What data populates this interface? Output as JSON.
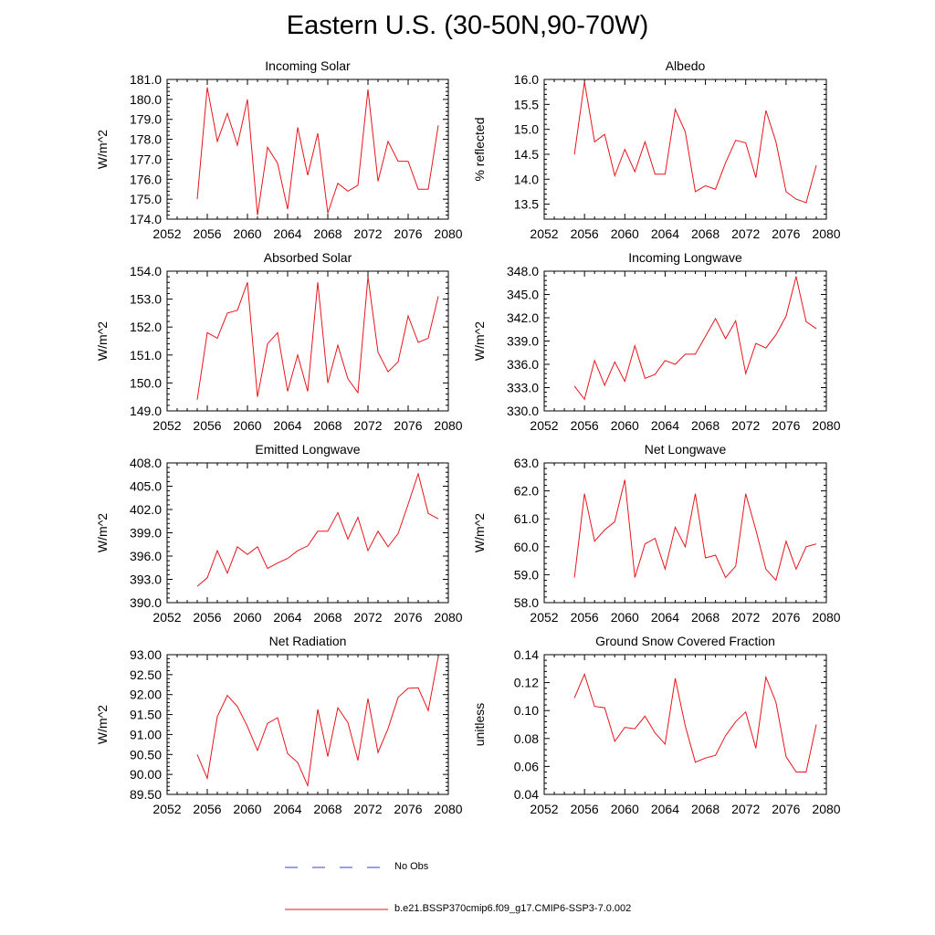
{
  "figure": {
    "title": "Eastern U.S. (30-50N,90-70W)",
    "line_color": "#e8141b",
    "obs_color": "#3b3bd6"
  },
  "legend": {
    "obs_label": "No Obs",
    "model_label": "b.e21.BSSP370cmip6.f09_g17.CMIP6-SSP3-7.0.002"
  },
  "chart_data": [
    {
      "type": "line",
      "title": "Incoming Solar",
      "ylabel": "W/m^2",
      "xlim": [
        2052,
        2080
      ],
      "xticks": [
        2052,
        2056,
        2060,
        2064,
        2068,
        2072,
        2076,
        2080
      ],
      "ylim": [
        174.0,
        181.0
      ],
      "yticks": [
        "174.0",
        "175.0",
        "176.0",
        "177.0",
        "178.0",
        "179.0",
        "180.0",
        "181.0"
      ],
      "x": [
        2055,
        2056,
        2057,
        2058,
        2059,
        2060,
        2061,
        2062,
        2063,
        2064,
        2065,
        2066,
        2067,
        2068,
        2069,
        2070,
        2071,
        2072,
        2073,
        2074,
        2075,
        2076,
        2077,
        2078,
        2079
      ],
      "y": [
        175.0,
        180.6,
        177.9,
        179.3,
        177.7,
        180.0,
        174.2,
        177.6,
        176.8,
        174.5,
        178.6,
        176.2,
        178.3,
        174.3,
        175.8,
        175.4,
        175.7,
        180.5,
        175.9,
        177.9,
        176.9,
        176.9,
        175.5,
        175.5,
        178.7
      ]
    },
    {
      "type": "line",
      "title": "Albedo",
      "ylabel": "% reflected",
      "xlim": [
        2052,
        2080
      ],
      "xticks": [
        2052,
        2056,
        2060,
        2064,
        2068,
        2072,
        2076,
        2080
      ],
      "ylim": [
        13.2,
        16.0
      ],
      "yticks": [
        "13.5",
        "14.0",
        "14.5",
        "15.0",
        "15.5",
        "16.0"
      ],
      "x": [
        2055,
        2056,
        2057,
        2058,
        2059,
        2060,
        2061,
        2062,
        2063,
        2064,
        2065,
        2066,
        2067,
        2068,
        2069,
        2070,
        2071,
        2072,
        2073,
        2074,
        2075,
        2076,
        2077,
        2078,
        2079
      ],
      "y": [
        14.5,
        15.95,
        14.75,
        14.9,
        14.07,
        14.6,
        14.15,
        14.75,
        14.1,
        14.1,
        15.4,
        14.95,
        13.75,
        13.87,
        13.8,
        14.33,
        14.78,
        14.73,
        14.03,
        15.38,
        14.75,
        13.75,
        13.6,
        13.53,
        14.28
      ]
    },
    {
      "type": "line",
      "title": "Absorbed Solar",
      "ylabel": "W/m^2",
      "xlim": [
        2052,
        2080
      ],
      "xticks": [
        2052,
        2056,
        2060,
        2064,
        2068,
        2072,
        2076,
        2080
      ],
      "ylim": [
        149.0,
        154.0
      ],
      "yticks": [
        "149.0",
        "150.0",
        "151.0",
        "152.0",
        "153.0",
        "154.0"
      ],
      "x": [
        2055,
        2056,
        2057,
        2058,
        2059,
        2060,
        2061,
        2062,
        2063,
        2064,
        2065,
        2066,
        2067,
        2068,
        2069,
        2070,
        2071,
        2072,
        2073,
        2074,
        2075,
        2076,
        2077,
        2078,
        2079
      ],
      "y": [
        149.4,
        151.8,
        151.6,
        152.5,
        152.6,
        153.6,
        149.5,
        151.4,
        151.8,
        149.7,
        151.0,
        149.7,
        153.6,
        150.0,
        151.35,
        150.15,
        149.65,
        153.8,
        151.1,
        150.4,
        150.75,
        152.4,
        151.45,
        151.6,
        153.1
      ]
    },
    {
      "type": "line",
      "title": "Incoming Longwave",
      "ylabel": "W/m^2",
      "xlim": [
        2052,
        2080
      ],
      "xticks": [
        2052,
        2056,
        2060,
        2064,
        2068,
        2072,
        2076,
        2080
      ],
      "ylim": [
        330.0,
        348.0
      ],
      "yticks": [
        "330.0",
        "333.0",
        "336.0",
        "339.0",
        "342.0",
        "345.0",
        "348.0"
      ],
      "x": [
        2055,
        2056,
        2057,
        2058,
        2059,
        2060,
        2061,
        2062,
        2063,
        2064,
        2065,
        2066,
        2067,
        2068,
        2069,
        2070,
        2071,
        2072,
        2073,
        2074,
        2075,
        2076,
        2077,
        2078,
        2079
      ],
      "y": [
        333.2,
        331.5,
        336.5,
        333.3,
        336.3,
        333.8,
        338.4,
        334.2,
        334.7,
        336.5,
        336.0,
        337.3,
        337.3,
        339.6,
        341.9,
        339.3,
        341.6,
        334.8,
        338.7,
        338.1,
        339.8,
        342.2,
        347.3,
        341.5,
        340.6
      ]
    },
    {
      "type": "line",
      "title": "Emitted Longwave",
      "ylabel": "W/m^2",
      "xlim": [
        2052,
        2080
      ],
      "xticks": [
        2052,
        2056,
        2060,
        2064,
        2068,
        2072,
        2076,
        2080
      ],
      "ylim": [
        390.0,
        408.0
      ],
      "yticks": [
        "390.0",
        "393.0",
        "396.0",
        "399.0",
        "402.0",
        "405.0",
        "408.0"
      ],
      "x": [
        2055,
        2056,
        2057,
        2058,
        2059,
        2060,
        2061,
        2062,
        2063,
        2064,
        2065,
        2066,
        2067,
        2068,
        2069,
        2070,
        2071,
        2072,
        2073,
        2074,
        2075,
        2076,
        2077,
        2078,
        2079
      ],
      "y": [
        392.1,
        393.2,
        396.7,
        393.8,
        397.2,
        396.2,
        397.2,
        394.4,
        395.1,
        395.7,
        396.7,
        397.3,
        399.2,
        399.2,
        401.6,
        398.2,
        401.0,
        396.7,
        399.2,
        397.2,
        398.9,
        402.7,
        406.6,
        401.5,
        400.8
      ]
    },
    {
      "type": "line",
      "title": "Net Longwave",
      "ylabel": "W/m^2",
      "xlim": [
        2052,
        2080
      ],
      "xticks": [
        2052,
        2056,
        2060,
        2064,
        2068,
        2072,
        2076,
        2080
      ],
      "ylim": [
        58.0,
        63.0
      ],
      "yticks": [
        "58.0",
        "59.0",
        "60.0",
        "61.0",
        "62.0",
        "63.0"
      ],
      "x": [
        2055,
        2056,
        2057,
        2058,
        2059,
        2060,
        2061,
        2062,
        2063,
        2064,
        2065,
        2066,
        2067,
        2068,
        2069,
        2070,
        2071,
        2072,
        2073,
        2074,
        2075,
        2076,
        2077,
        2078,
        2079
      ],
      "y": [
        58.9,
        61.9,
        60.2,
        60.6,
        60.9,
        62.4,
        58.9,
        60.1,
        60.3,
        59.2,
        60.7,
        60.0,
        61.9,
        59.6,
        59.7,
        58.9,
        59.3,
        61.9,
        60.6,
        59.2,
        58.8,
        60.2,
        59.2,
        60.0,
        60.1
      ]
    },
    {
      "type": "line",
      "title": "Net Radiation",
      "ylabel": "W/m^2",
      "xlim": [
        2052,
        2080
      ],
      "xticks": [
        2052,
        2056,
        2060,
        2064,
        2068,
        2072,
        2076,
        2080
      ],
      "ylim": [
        89.5,
        93.0
      ],
      "yticks": [
        "89.50",
        "90.00",
        "90.50",
        "91.00",
        "91.50",
        "92.00",
        "92.50",
        "93.00"
      ],
      "x": [
        2055,
        2056,
        2057,
        2058,
        2059,
        2060,
        2061,
        2062,
        2063,
        2064,
        2065,
        2066,
        2067,
        2068,
        2069,
        2070,
        2071,
        2072,
        2073,
        2074,
        2075,
        2076,
        2077,
        2078,
        2079
      ],
      "y": [
        90.5,
        89.9,
        91.45,
        91.98,
        91.7,
        91.2,
        90.6,
        91.28,
        91.42,
        90.52,
        90.3,
        89.72,
        91.63,
        90.45,
        91.67,
        91.3,
        90.35,
        91.9,
        90.55,
        91.15,
        91.93,
        92.16,
        92.17,
        91.6,
        92.95
      ]
    },
    {
      "type": "line",
      "title": "Ground Snow Covered Fraction",
      "ylabel": "unitless",
      "xlim": [
        2052,
        2080
      ],
      "xticks": [
        2052,
        2056,
        2060,
        2064,
        2068,
        2072,
        2076,
        2080
      ],
      "ylim": [
        0.04,
        0.14
      ],
      "yticks": [
        "0.04",
        "0.06",
        "0.08",
        "0.10",
        "0.12",
        "0.14"
      ],
      "x": [
        2055,
        2056,
        2057,
        2058,
        2059,
        2060,
        2061,
        2062,
        2063,
        2064,
        2065,
        2066,
        2067,
        2068,
        2069,
        2070,
        2071,
        2072,
        2073,
        2074,
        2075,
        2076,
        2077,
        2078,
        2079
      ],
      "y": [
        0.109,
        0.126,
        0.103,
        0.102,
        0.078,
        0.088,
        0.087,
        0.096,
        0.084,
        0.076,
        0.123,
        0.089,
        0.063,
        0.066,
        0.068,
        0.082,
        0.092,
        0.099,
        0.073,
        0.124,
        0.106,
        0.067,
        0.056,
        0.056,
        0.09
      ]
    }
  ]
}
